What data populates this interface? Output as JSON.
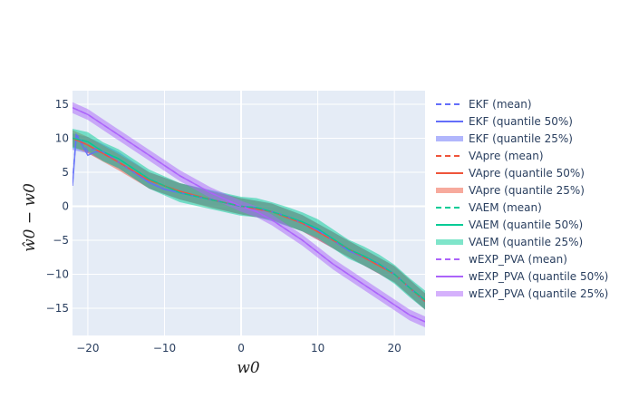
{
  "chart_data": {
    "type": "line",
    "title": "",
    "xlabel": "w0",
    "ylabel": "ŵ0 − w0",
    "xlim": [
      -22,
      24
    ],
    "ylim": [
      -19,
      17
    ],
    "xticks": [
      -20,
      -10,
      0,
      10,
      20
    ],
    "yticks": [
      -15,
      -10,
      -5,
      0,
      5,
      10,
      15
    ],
    "xtick_labels": [
      "−20",
      "−10",
      "0",
      "10",
      "20"
    ],
    "ytick_labels": [
      "−15",
      "−10",
      "−5",
      "0",
      "5",
      "10",
      "15"
    ],
    "grid": true,
    "legend_position": "right",
    "series": [
      {
        "name": "EKF (mean)",
        "kind": "mean",
        "color": "#636efa",
        "x": [
          -22,
          -21.5,
          -21,
          -20,
          -19,
          -18,
          -16,
          -14,
          -12,
          -10,
          -8,
          -6,
          -4,
          -2,
          0,
          2,
          4,
          6,
          8,
          10,
          12,
          14,
          16,
          18,
          20,
          22,
          24
        ],
        "y": [
          3.5,
          10.5,
          10,
          8,
          8.5,
          8,
          6.5,
          5,
          3.5,
          2.5,
          2,
          1.5,
          1,
          0.5,
          0,
          -0.3,
          -0.8,
          -1.5,
          -2.5,
          -3.5,
          -5,
          -6.5,
          -7.5,
          -8.5,
          -10,
          -12,
          -14
        ]
      },
      {
        "name": "EKF (quantile 50%)",
        "kind": "median",
        "color": "#636efa",
        "x": [
          -22,
          -21.5,
          -21,
          -20,
          -19,
          -18,
          -16,
          -14,
          -12,
          -10,
          -8,
          -6,
          -4,
          -2,
          0,
          2,
          4,
          6,
          8,
          10,
          12,
          14,
          16,
          18,
          20,
          22,
          24
        ],
        "y": [
          3,
          10.5,
          9.5,
          7.5,
          8,
          8,
          6.5,
          5,
          3.5,
          2.5,
          2,
          1.5,
          1,
          0.5,
          0,
          -0.3,
          -0.8,
          -1.5,
          -2.5,
          -3.5,
          -5,
          -6.5,
          -7.5,
          -8.5,
          -10,
          -12,
          -14
        ]
      },
      {
        "name": "EKF (quantile 25%)",
        "kind": "band",
        "color": "#636efa",
        "band_width": 1.2,
        "x": [
          -22,
          -20,
          -16,
          -12,
          -8,
          -4,
          0,
          4,
          8,
          12,
          16,
          20,
          24
        ],
        "y": [
          9.5,
          9,
          6.8,
          3.8,
          2.2,
          1.1,
          0,
          -0.8,
          -2.5,
          -5,
          -7.5,
          -10,
          -14
        ]
      },
      {
        "name": "VApre (mean)",
        "kind": "mean",
        "color": "#ef553b",
        "x": [
          -22,
          -20,
          -16,
          -12,
          -8,
          -4,
          0,
          4,
          8,
          12,
          16,
          20,
          24
        ],
        "y": [
          10,
          9,
          6.5,
          3.8,
          2.2,
          1,
          0,
          -0.8,
          -2.5,
          -5,
          -7.5,
          -10,
          -14
        ]
      },
      {
        "name": "VApre (quantile 50%)",
        "kind": "median",
        "color": "#ef553b",
        "x": [
          -22,
          -20,
          -16,
          -12,
          -8,
          -4,
          0,
          4,
          8,
          12,
          16,
          20,
          24
        ],
        "y": [
          10,
          9,
          6.5,
          3.8,
          2.2,
          1,
          0,
          -0.8,
          -2.5,
          -5,
          -7.5,
          -10,
          -14
        ]
      },
      {
        "name": "VApre (quantile 25%)",
        "kind": "band",
        "color": "#ef553b",
        "band_width": 1.2,
        "x": [
          -22,
          -20,
          -16,
          -12,
          -8,
          -4,
          0,
          4,
          8,
          12,
          16,
          20,
          24
        ],
        "y": [
          10,
          9,
          6.5,
          3.8,
          2.2,
          1,
          0,
          -0.8,
          -2.5,
          -5,
          -7.5,
          -10,
          -14
        ]
      },
      {
        "name": "VAEM (mean)",
        "kind": "mean",
        "color": "#00cc96",
        "x": [
          -22,
          -20,
          -18,
          -16,
          -14,
          -12,
          -10,
          -8,
          -6,
          -4,
          -2,
          0,
          2,
          4,
          6,
          8,
          10,
          12,
          14,
          16,
          18,
          20,
          22,
          24
        ],
        "y": [
          10,
          9.5,
          8,
          7,
          5.5,
          4,
          3,
          2,
          1.5,
          1,
          0.5,
          0,
          -0.2,
          -0.8,
          -1.5,
          -2.3,
          -3.3,
          -4.8,
          -6.3,
          -7.3,
          -8.5,
          -10,
          -12,
          -13.8
        ]
      },
      {
        "name": "VAEM (quantile 50%)",
        "kind": "median",
        "color": "#00cc96",
        "x": [
          -22,
          -20,
          -18,
          -16,
          -14,
          -12,
          -10,
          -8,
          -6,
          -4,
          -2,
          0,
          2,
          4,
          6,
          8,
          10,
          12,
          14,
          16,
          18,
          20,
          22,
          24
        ],
        "y": [
          10,
          9.5,
          8,
          7,
          5.5,
          4,
          3,
          2,
          1.5,
          1,
          0.5,
          0,
          -0.2,
          -0.8,
          -1.5,
          -2.3,
          -3.3,
          -4.8,
          -6.3,
          -7.3,
          -8.5,
          -10,
          -12,
          -13.8
        ]
      },
      {
        "name": "VAEM (quantile 25%)",
        "kind": "band",
        "color": "#00cc96",
        "band_width": 1.4,
        "x": [
          -22,
          -20,
          -18,
          -16,
          -14,
          -12,
          -10,
          -8,
          -6,
          -4,
          -2,
          0,
          2,
          4,
          6,
          8,
          10,
          12,
          14,
          16,
          18,
          20,
          22,
          24
        ],
        "y": [
          10,
          9.5,
          8,
          7,
          5.5,
          4,
          3,
          2,
          1.5,
          1,
          0.5,
          0,
          -0.2,
          -0.8,
          -1.5,
          -2.3,
          -3.3,
          -4.8,
          -6.3,
          -7.3,
          -8.5,
          -10,
          -12,
          -13.8
        ]
      },
      {
        "name": "wEXP_PVA (mean)",
        "kind": "mean",
        "color": "#ab63fa",
        "x": [
          -22,
          -20,
          -16,
          -12,
          -8,
          -4,
          -2,
          0,
          2,
          4,
          8,
          12,
          16,
          20,
          22,
          24
        ],
        "y": [
          14.5,
          13.5,
          10.5,
          7.5,
          4.5,
          2,
          1,
          0,
          -0.8,
          -2,
          -5,
          -8.5,
          -11.5,
          -14.5,
          -16,
          -17
        ]
      },
      {
        "name": "wEXP_PVA (quantile 50%)",
        "kind": "median",
        "color": "#ab63fa",
        "x": [
          -22,
          -20,
          -16,
          -12,
          -8,
          -4,
          -2,
          0,
          2,
          4,
          8,
          12,
          16,
          20,
          22,
          24
        ],
        "y": [
          14.5,
          13.5,
          10.5,
          7.5,
          4.5,
          2,
          1,
          0,
          -0.8,
          -2,
          -5,
          -8.5,
          -11.5,
          -14.5,
          -16,
          -17
        ]
      },
      {
        "name": "wEXP_PVA (quantile 25%)",
        "kind": "band",
        "color": "#ab63fa",
        "band_width": 0.8,
        "x": [
          -22,
          -20,
          -16,
          -12,
          -8,
          -4,
          -2,
          0,
          2,
          4,
          8,
          12,
          16,
          20,
          22,
          24
        ],
        "y": [
          14.5,
          13.5,
          10.5,
          7.5,
          4.5,
          2,
          1,
          0,
          -0.8,
          -2,
          -5,
          -8.5,
          -11.5,
          -14.5,
          -16,
          -17
        ]
      }
    ]
  }
}
